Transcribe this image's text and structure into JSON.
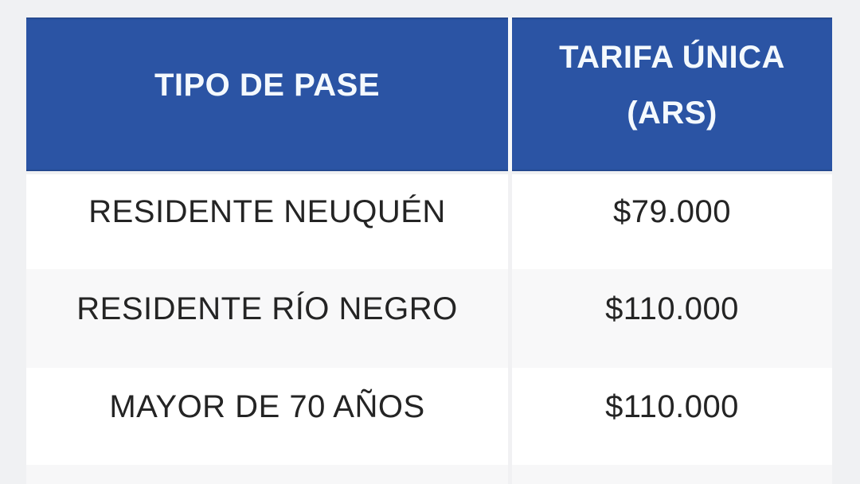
{
  "chart_data": {
    "type": "table",
    "columns": [
      "TIPO DE PASE",
      "TARIFA ÚNICA (ARS)"
    ],
    "rows": [
      [
        "RESIDENTE NEUQUÉN",
        "$79.000"
      ],
      [
        "RESIDENTE RÍO NEGRO",
        "$110.000"
      ],
      [
        "MAYOR DE 70 AÑOS",
        "$110.000"
      ]
    ]
  },
  "table": {
    "header": {
      "col1": "TIPO DE PASE",
      "col2_line1": "TARIFA ÚNICA",
      "col2_line2": "(ARS)"
    },
    "rows": [
      {
        "tipo": "RESIDENTE NEUQUÉN",
        "tarifa": "$79.000"
      },
      {
        "tipo": "RESIDENTE RÍO NEGRO",
        "tarifa": "$110.000"
      },
      {
        "tipo": "MAYOR DE 70 AÑOS",
        "tarifa": "$110.000"
      }
    ]
  },
  "colors": {
    "header_bg": "#2b54a4",
    "header_text": "#f4f9fd",
    "row_text": "#242424",
    "row_bg": "#ffffff",
    "row_alt_bg": "#f8f8f9",
    "page_bg": "#f0f1f3"
  }
}
